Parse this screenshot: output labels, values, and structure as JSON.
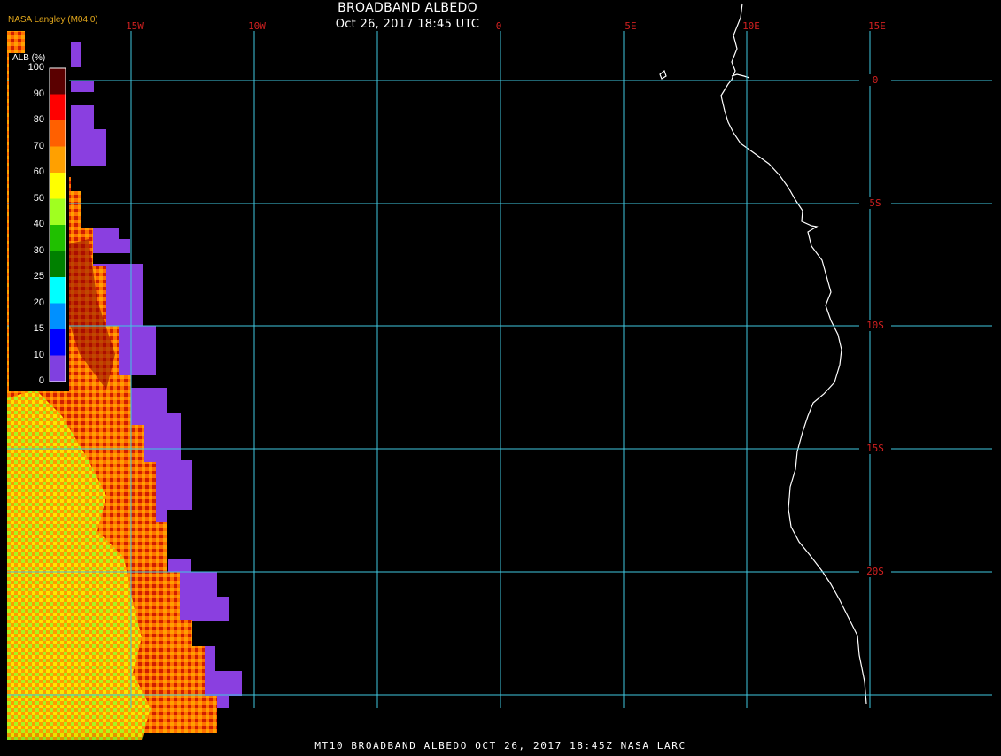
{
  "header": {
    "title": "BROADBAND ALBEDO",
    "subtitle": "Oct 26, 2017 18:45 UTC",
    "provider": "NASA Langley (M04.0)"
  },
  "footer": {
    "text": "MT10  BROADBAND ALBEDO   OCT 26, 2017 18:45Z   NASA LARC"
  },
  "legend": {
    "title": "ALB (%)",
    "labels": [
      "100",
      "90",
      "80",
      "70",
      "60",
      "50",
      "40",
      "30",
      "25",
      "20",
      "15",
      "10",
      "0"
    ],
    "colors": [
      "#5a0000",
      "#b00000",
      "#ff0000",
      "#ff6000",
      "#ffa000",
      "#ffff00",
      "#a0ff20",
      "#20c000",
      "#008000",
      "#00ffff",
      "#0090ff",
      "#0000ff",
      "#8040e0"
    ]
  },
  "map": {
    "lon_labels": [
      "15W",
      "10W",
      "0",
      "5E",
      "10E",
      "15E"
    ],
    "lat_labels": [
      "0",
      "5S",
      "10S",
      "15S",
      "20S"
    ],
    "gridline_color": "#40c8e0",
    "label_color": "#d02020",
    "coast_color": "#ffffff"
  }
}
